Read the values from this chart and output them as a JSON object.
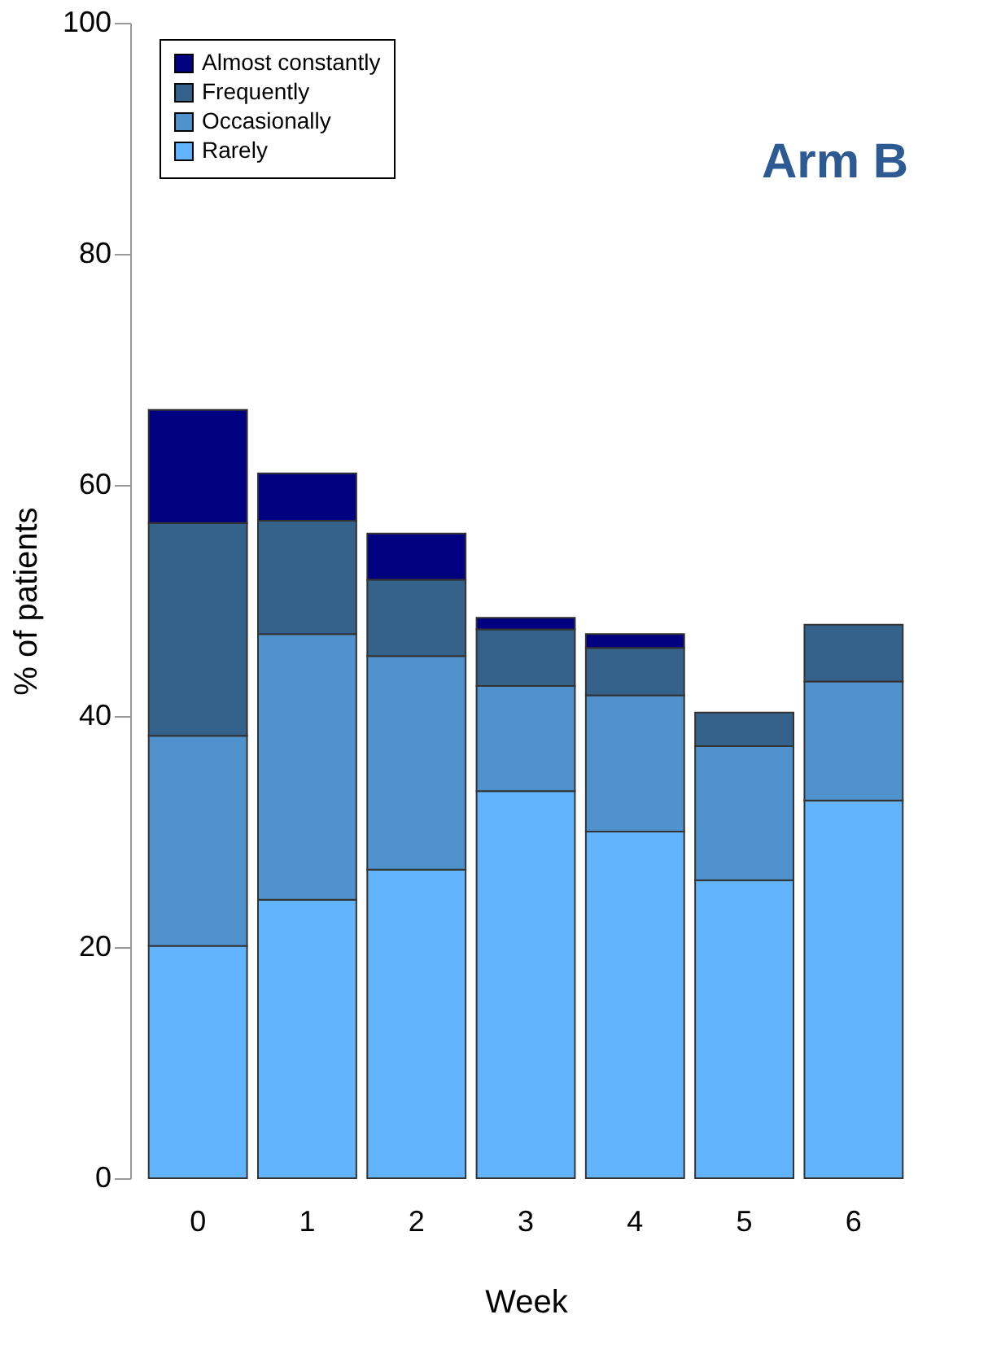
{
  "chart_data": {
    "type": "bar",
    "title": "Arm B",
    "xlabel": "Week",
    "ylabel": "% of patients",
    "categories": [
      "0",
      "1",
      "2",
      "3",
      "4",
      "5",
      "6"
    ],
    "stacked": true,
    "series": [
      {
        "name": "Rarely",
        "color": "#62b5fd",
        "values": [
          20.1,
          24.1,
          26.7,
          33.5,
          30.0,
          25.8,
          32.7
        ]
      },
      {
        "name": "Occasionally",
        "color": "#4f92cd",
        "values": [
          18.2,
          23.0,
          18.5,
          9.1,
          11.8,
          11.6,
          10.3
        ]
      },
      {
        "name": "Frequently",
        "color": "#35628a",
        "values": [
          18.4,
          9.8,
          6.6,
          4.9,
          4.1,
          2.9,
          4.9
        ]
      },
      {
        "name": "Almost constantly",
        "color": "#000080",
        "values": [
          9.8,
          4.1,
          4.0,
          1.0,
          1.2,
          null,
          null
        ]
      }
    ],
    "ylim": [
      0,
      100
    ],
    "yticks": [
      0,
      20,
      40,
      60,
      80,
      100
    ],
    "grid": false,
    "legend": "top left"
  }
}
